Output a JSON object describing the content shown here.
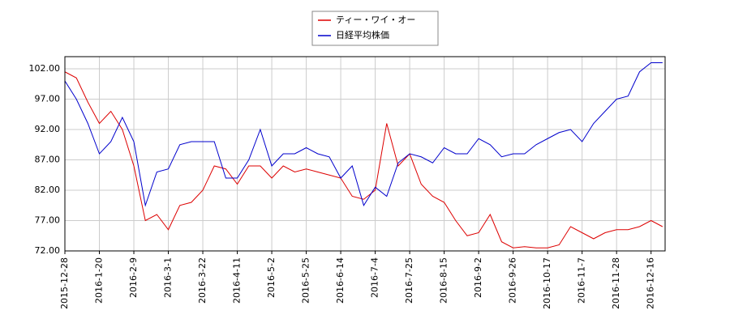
{
  "chart_data": {
    "type": "line",
    "categories": [
      "2015-12-28",
      null,
      null,
      "2016-1-20",
      null,
      null,
      "2016-2-9",
      null,
      null,
      "2016-3-1",
      null,
      null,
      "2016-3-22",
      null,
      null,
      "2016-4-11",
      null,
      null,
      "2016-5-2",
      null,
      null,
      "2016-5-25",
      null,
      null,
      "2016-6-14",
      null,
      null,
      "2016-7-4",
      null,
      null,
      "2016-7-25",
      null,
      null,
      "2016-8-15",
      null,
      null,
      "2016-9-2",
      null,
      null,
      "2016-9-26",
      null,
      null,
      "2016-10-17",
      null,
      null,
      "2016-11-7",
      null,
      null,
      "2016-11-28",
      null,
      null,
      "2016-12-16",
      null
    ],
    "series": [
      {
        "name": "ティー・ワイ・オー",
        "color": "#dd0000",
        "values": [
          101.5,
          100.5,
          96.5,
          93,
          95,
          92,
          86,
          77,
          78,
          75.5,
          79.5,
          80,
          82,
          86,
          85.5,
          83,
          86,
          86,
          84,
          86,
          85,
          85.5,
          85,
          84.5,
          84,
          81,
          80.5,
          82,
          93,
          86,
          88,
          83,
          81,
          80,
          77,
          74.5,
          75,
          78,
          73.5,
          72.5,
          72.7,
          72.5,
          72.5,
          73,
          76,
          75,
          74,
          75,
          75.5,
          75.5,
          76,
          77,
          76
        ]
      },
      {
        "name": "日経平均株価",
        "color": "#0000cc",
        "values": [
          100,
          97,
          93,
          88,
          90,
          94,
          90,
          79.5,
          85,
          85.5,
          89.5,
          90,
          90,
          90,
          84,
          84,
          87,
          92,
          86,
          88,
          88,
          89,
          88,
          87.5,
          84,
          86,
          79.5,
          82.5,
          81,
          86.5,
          88,
          87.5,
          86.5,
          89,
          88,
          88,
          90.5,
          89.5,
          87.5,
          88,
          88,
          89.5,
          90.5,
          91.5,
          92,
          90,
          93,
          95,
          97,
          97.5,
          101.5,
          103,
          103
        ]
      }
    ],
    "ylim": [
      72,
      104
    ],
    "yticks": [
      {
        "value": 72,
        "label": "72.00"
      },
      {
        "value": 77,
        "label": "77.00"
      },
      {
        "value": 82,
        "label": "82.00"
      },
      {
        "value": 87,
        "label": "87.00"
      },
      {
        "value": 92,
        "label": "92.00"
      },
      {
        "value": 97,
        "label": "97.00"
      },
      {
        "value": 102,
        "label": "102.00"
      }
    ],
    "grid": true
  }
}
